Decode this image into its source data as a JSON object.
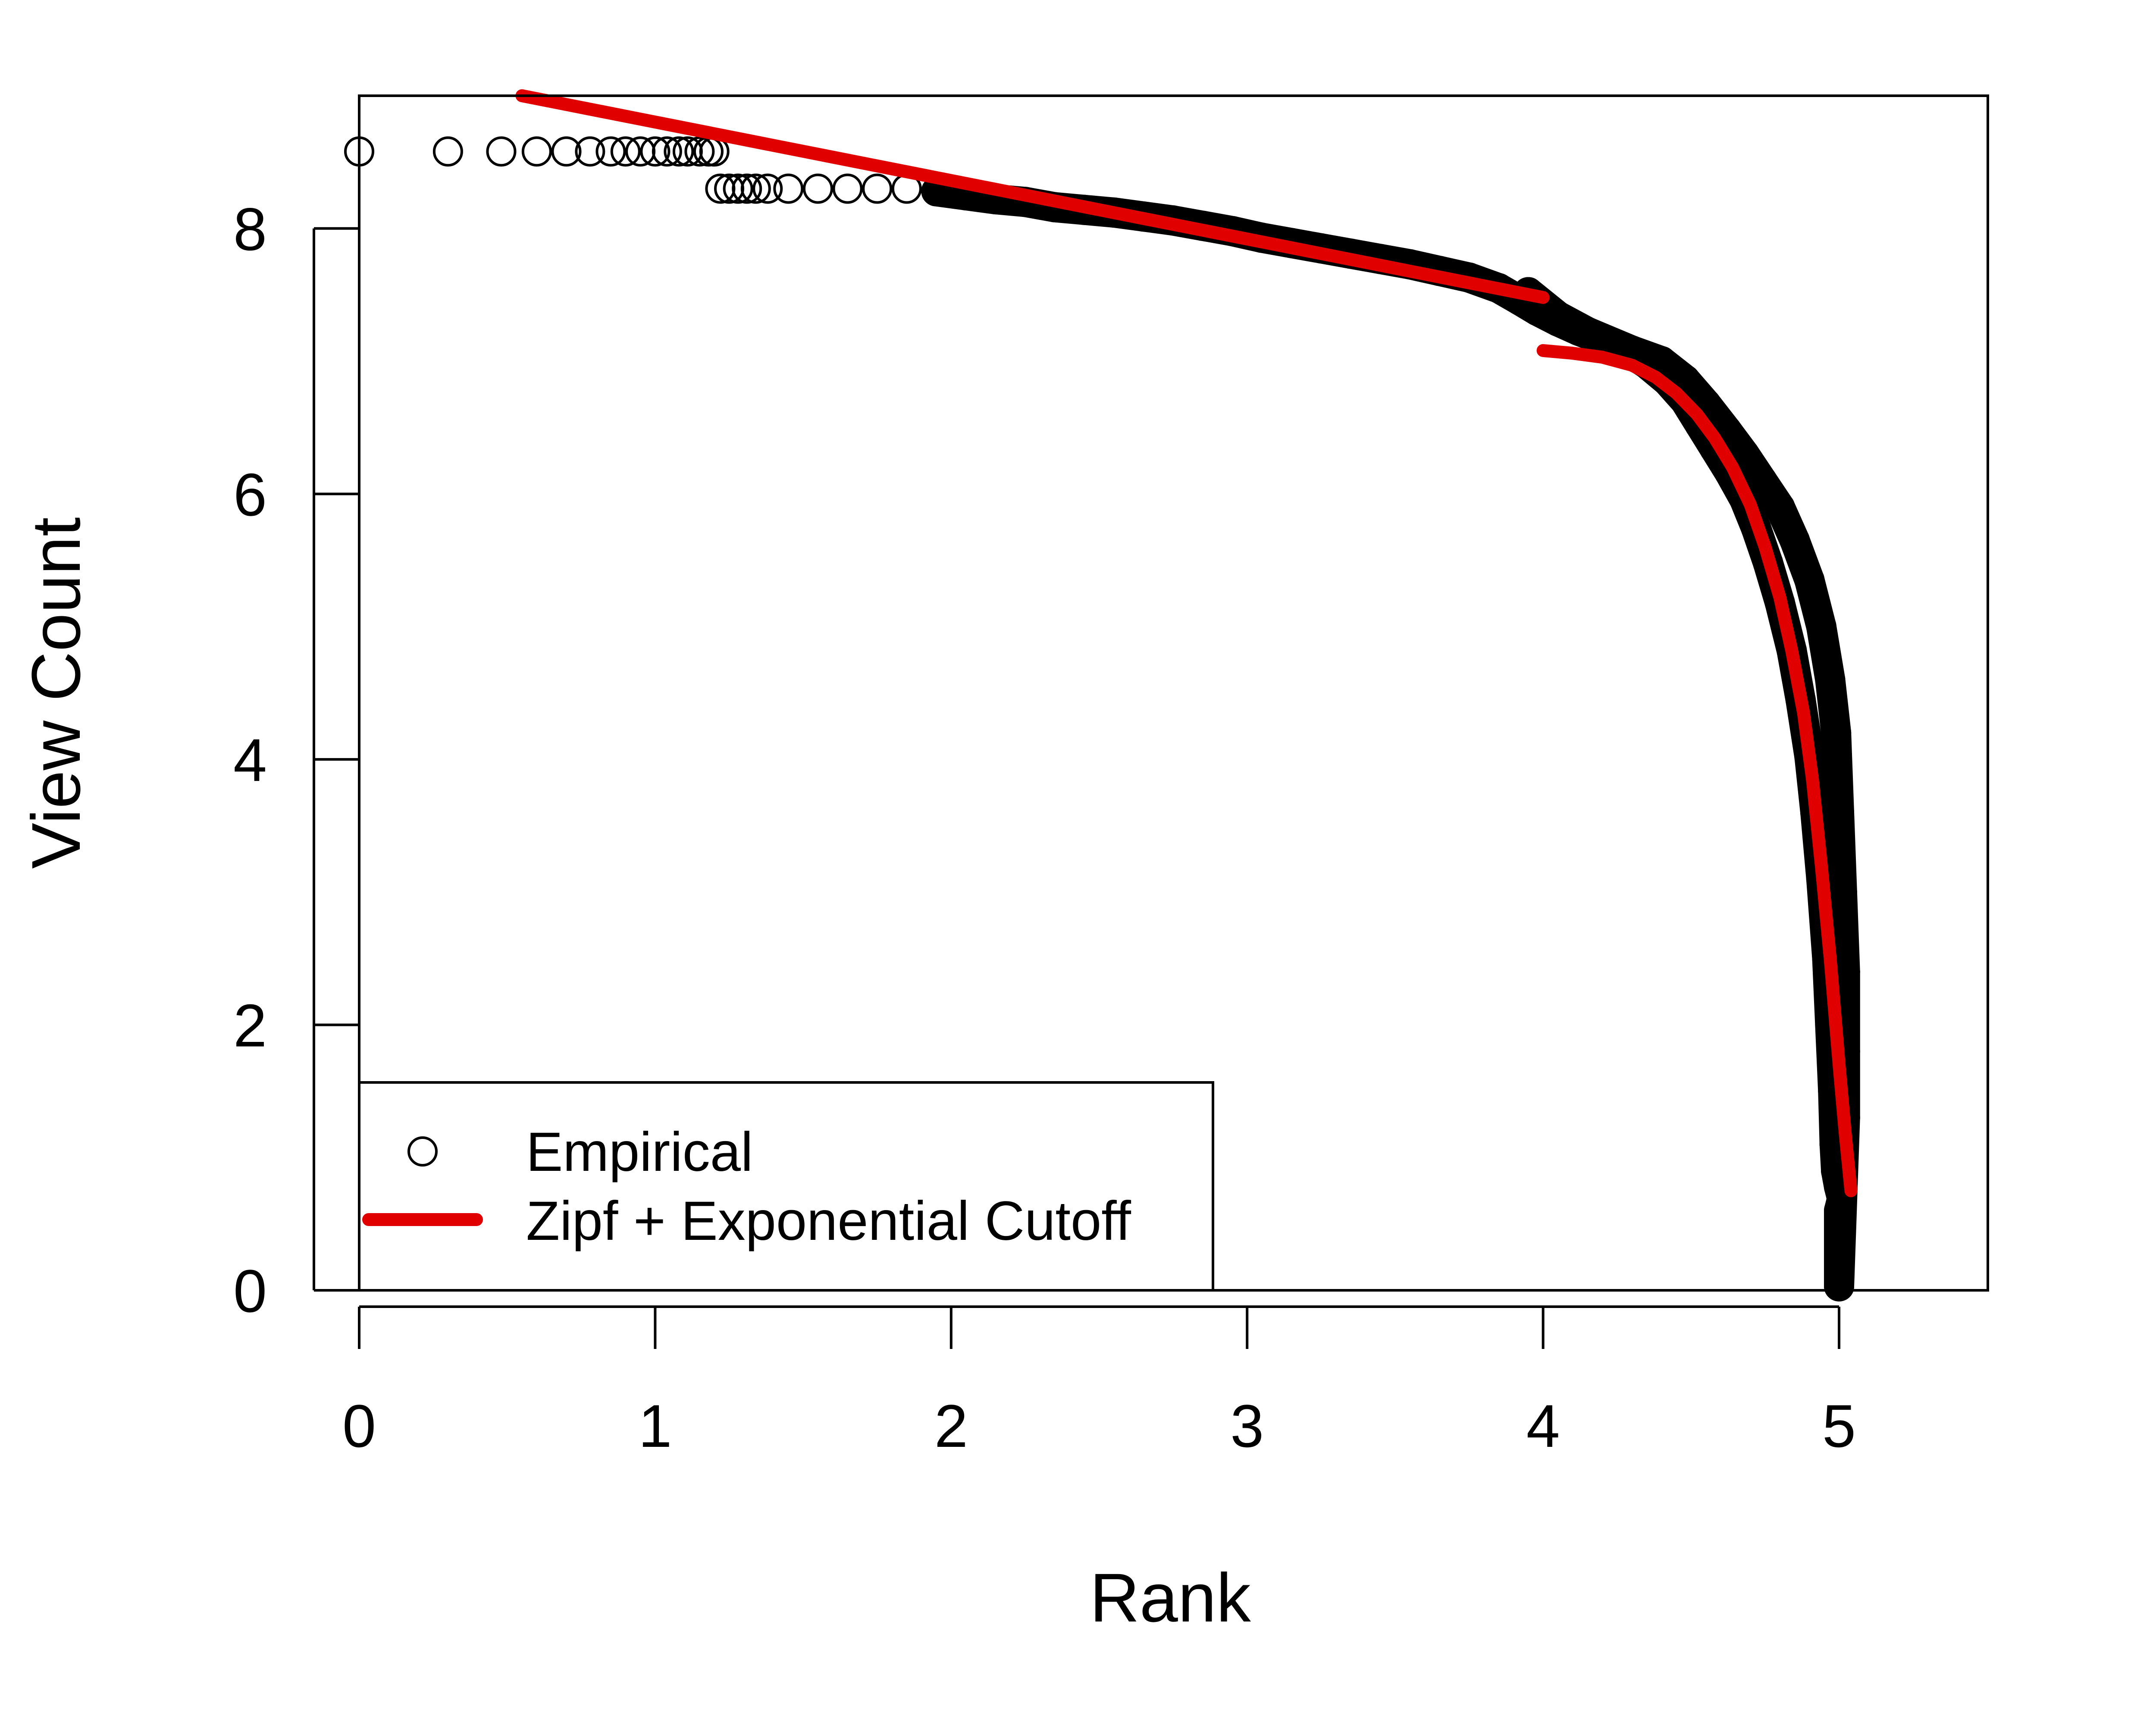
{
  "chart_data": {
    "type": "scatter",
    "xlabel": "Rank",
    "ylabel": "View Count",
    "xlim": [
      0,
      5.5
    ],
    "ylim": [
      0,
      9
    ],
    "x_ticks": [
      0,
      1,
      2,
      3,
      4,
      5
    ],
    "y_ticks": [
      0,
      2,
      4,
      6,
      8
    ],
    "x_tick_labels": [
      "0",
      "1",
      "2",
      "3",
      "4",
      "5"
    ],
    "y_tick_labels": [
      "0",
      "2",
      "4",
      "6",
      "8"
    ],
    "grid": false,
    "legend_position": "bottom-left",
    "series": [
      {
        "name": "Empirical",
        "kind": "points",
        "marker": "open-circle",
        "color": "#000000",
        "points": [
          [
            0.0,
            8.58
          ],
          [
            0.3,
            8.58
          ],
          [
            0.48,
            8.58
          ],
          [
            0.6,
            8.58
          ],
          [
            0.7,
            8.58
          ],
          [
            0.78,
            8.58
          ],
          [
            0.85,
            8.58
          ],
          [
            0.9,
            8.58
          ],
          [
            0.95,
            8.58
          ],
          [
            1.0,
            8.58
          ],
          [
            1.04,
            8.58
          ],
          [
            1.08,
            8.58
          ],
          [
            1.11,
            8.58
          ],
          [
            1.15,
            8.58
          ],
          [
            1.18,
            8.58
          ],
          [
            1.2,
            8.58
          ],
          [
            1.22,
            8.3
          ],
          [
            1.25,
            8.3
          ],
          [
            1.28,
            8.3
          ],
          [
            1.31,
            8.3
          ],
          [
            1.34,
            8.3
          ],
          [
            1.38,
            8.3
          ],
          [
            1.45,
            8.3
          ],
          [
            1.55,
            8.3
          ],
          [
            1.65,
            8.3
          ],
          [
            1.75,
            8.3
          ],
          [
            1.85,
            8.3
          ],
          [
            1.95,
            8.28
          ],
          [
            2.05,
            8.25
          ],
          [
            2.15,
            8.22
          ],
          [
            2.25,
            8.2
          ],
          [
            2.35,
            8.16
          ],
          [
            2.45,
            8.14
          ],
          [
            2.55,
            8.12
          ],
          [
            2.65,
            8.09
          ],
          [
            2.75,
            8.06
          ],
          [
            2.85,
            8.02
          ],
          [
            2.95,
            7.98
          ],
          [
            3.05,
            7.93
          ],
          [
            3.15,
            7.89
          ],
          [
            3.25,
            7.85
          ],
          [
            3.35,
            7.81
          ],
          [
            3.45,
            7.77
          ],
          [
            3.55,
            7.73
          ],
          [
            3.65,
            7.68
          ],
          [
            3.75,
            7.63
          ],
          [
            3.85,
            7.55
          ],
          [
            3.92,
            7.46
          ],
          [
            3.98,
            7.38
          ],
          [
            4.05,
            7.3
          ],
          [
            4.12,
            7.23
          ],
          [
            4.2,
            7.16
          ],
          [
            4.28,
            7.08
          ],
          [
            4.35,
            6.98
          ],
          [
            4.42,
            6.85
          ],
          [
            4.48,
            6.7
          ],
          [
            4.53,
            6.52
          ],
          [
            4.58,
            6.34
          ],
          [
            4.63,
            6.16
          ],
          [
            4.68,
            5.96
          ],
          [
            4.72,
            5.74
          ],
          [
            4.76,
            5.48
          ],
          [
            4.8,
            5.18
          ],
          [
            4.84,
            4.82
          ],
          [
            4.87,
            4.45
          ],
          [
            4.9,
            4.02
          ],
          [
            4.92,
            3.6
          ],
          [
            4.94,
            3.1
          ],
          [
            4.96,
            2.5
          ],
          [
            4.97,
            2.0
          ],
          [
            4.98,
            1.5
          ],
          [
            4.985,
            1.1
          ],
          [
            4.99,
            0.9
          ],
          [
            5.0,
            0.78
          ],
          [
            5.01,
            0.69
          ],
          [
            5.0,
            0.6
          ],
          [
            5.0,
            0.48
          ],
          [
            5.0,
            0.3
          ],
          [
            5.0,
            0.03
          ],
          [
            5.02,
            1.3
          ],
          [
            5.02,
            1.8
          ],
          [
            5.02,
            2.4
          ],
          [
            5.01,
            3.0
          ],
          [
            5.0,
            3.6
          ],
          [
            4.99,
            4.2
          ],
          [
            4.97,
            4.6
          ],
          [
            4.94,
            5.0
          ],
          [
            4.9,
            5.35
          ],
          [
            4.85,
            5.65
          ],
          [
            4.8,
            5.9
          ],
          [
            4.74,
            6.1
          ],
          [
            4.68,
            6.3
          ],
          [
            4.62,
            6.48
          ],
          [
            4.55,
            6.68
          ],
          [
            4.48,
            6.86
          ],
          [
            4.4,
            7.0
          ],
          [
            4.3,
            7.08
          ],
          [
            4.15,
            7.22
          ],
          [
            4.05,
            7.34
          ],
          [
            3.95,
            7.52
          ]
        ]
      },
      {
        "name": "Zipf + Exponential Cutoff",
        "kind": "line",
        "color": "#e00000",
        "segments": [
          [
            [
              0.55,
              9.0
            ],
            [
              4.0,
              7.48
            ]
          ],
          [
            [
              4.0,
              7.08
            ],
            [
              4.1,
              7.06
            ],
            [
              4.2,
              7.03
            ],
            [
              4.3,
              6.97
            ],
            [
              4.38,
              6.88
            ],
            [
              4.45,
              6.76
            ],
            [
              4.52,
              6.6
            ],
            [
              4.58,
              6.42
            ],
            [
              4.64,
              6.2
            ],
            [
              4.7,
              5.92
            ],
            [
              4.75,
              5.6
            ],
            [
              4.8,
              5.22
            ],
            [
              4.84,
              4.82
            ],
            [
              4.88,
              4.35
            ],
            [
              4.91,
              3.85
            ],
            [
              4.94,
              3.2
            ],
            [
              4.97,
              2.5
            ],
            [
              5.0,
              1.7
            ],
            [
              5.02,
              1.2
            ],
            [
              5.04,
              0.75
            ]
          ]
        ]
      }
    ]
  },
  "legend": {
    "items": [
      {
        "label": "Empirical",
        "symbol": "open-circle",
        "color": "#000000"
      },
      {
        "label": "Zipf + Exponential Cutoff",
        "symbol": "thick-line",
        "color": "#e00000"
      }
    ]
  }
}
